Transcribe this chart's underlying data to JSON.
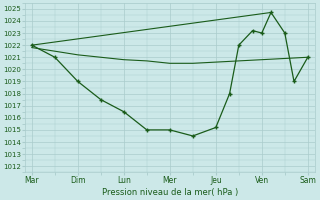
{
  "xlabel": "Pression niveau de la mer( hPa )",
  "x_labels": [
    "Mar",
    "Dim",
    "Lun",
    "Mer",
    "Jeu",
    "Ven",
    "Sam"
  ],
  "x_ticks": [
    0,
    1,
    2,
    3,
    4,
    5,
    6
  ],
  "ylim": [
    1011.5,
    1025.5
  ],
  "yticks": [
    1012,
    1013,
    1014,
    1015,
    1016,
    1017,
    1018,
    1019,
    1020,
    1021,
    1022,
    1023,
    1024,
    1025
  ],
  "bg_color": "#cce8e8",
  "grid_color": "#aacccc",
  "line_color": "#1a5c1a",
  "font_color": "#1a5c1a",
  "trend_x": [
    0,
    5.2
  ],
  "trend_y": [
    1022.0,
    1024.7
  ],
  "smooth_x": [
    0,
    0.5,
    1.0,
    1.5,
    2.0,
    2.5,
    3.0,
    3.5,
    4.0,
    4.5,
    5.0,
    5.5,
    6.0
  ],
  "smooth_y": [
    1021.8,
    1021.5,
    1021.2,
    1021.0,
    1020.8,
    1020.7,
    1020.5,
    1020.5,
    1020.6,
    1020.7,
    1020.8,
    1020.9,
    1021.0
  ],
  "detail_x": [
    0,
    0.5,
    1.0,
    1.5,
    2.0,
    2.5,
    3.0,
    3.5,
    4.0,
    4.3,
    4.5,
    4.8,
    5.0,
    5.2,
    5.5,
    5.7,
    6.0
  ],
  "detail_y": [
    1022.0,
    1021.0,
    1019.0,
    1017.5,
    1016.5,
    1015.0,
    1015.0,
    1014.5,
    1015.2,
    1018.0,
    1022.0,
    1023.2,
    1023.0,
    1024.7,
    1023.0,
    1019.0,
    1021.0
  ]
}
